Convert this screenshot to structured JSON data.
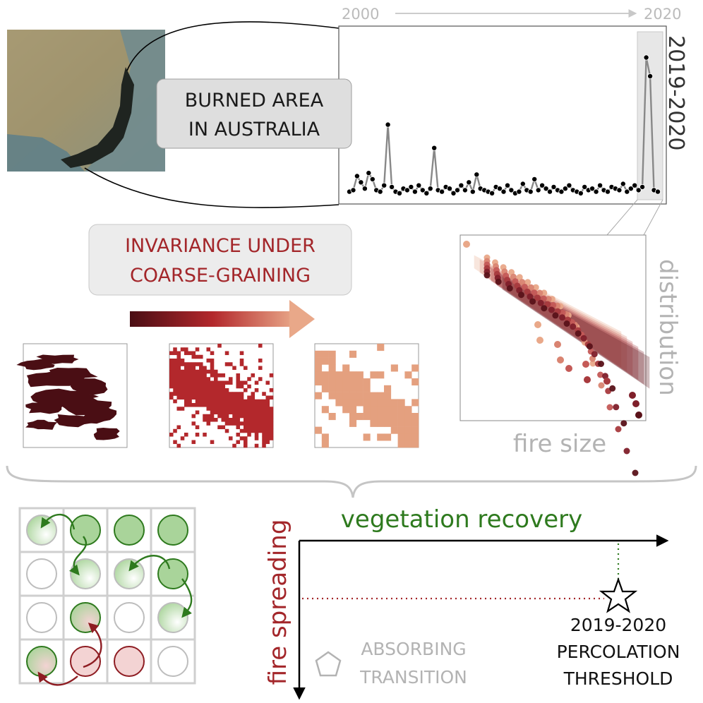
{
  "timeline": {
    "start": "2000",
    "end": "2020"
  },
  "burned_box": {
    "line1": "BURNED AREA",
    "line2": "IN AUSTRALIA"
  },
  "highlight_period": "2019-2020",
  "invariance_box": {
    "line1": "INVARIANCE UNDER",
    "line2": "COARSE-GRAINING"
  },
  "distribution_axis": {
    "xlabel": "fire size",
    "ylabel": "distribution"
  },
  "phase_diagram": {
    "xlabel": "vegetation recovery",
    "ylabel": "fire spreading",
    "absorbing": {
      "line1": "ABSORBING",
      "line2": "TRANSITION"
    },
    "percolation": {
      "line1": "2019-2020",
      "line2": "PERCOLATION",
      "line3": "THRESHOLD"
    }
  },
  "colors": {
    "dark_red": "#4a0e14",
    "mid_red": "#b3282c",
    "light_salmon": "#e4a07f",
    "green": "#2e7a1e",
    "text_red": "#a3262a",
    "gray": "#b3b3b3"
  },
  "grid_states": [
    [
      "green-fade",
      "green",
      "green",
      "green"
    ],
    [
      "empty",
      "green-fade",
      "green-fade",
      "green"
    ],
    [
      "empty",
      "green",
      "empty",
      "green-fade"
    ],
    [
      "green",
      "red",
      "red",
      "empty"
    ]
  ],
  "chart_data": {
    "type": "scatter",
    "x": [
      2000,
      2000.25,
      2000.5,
      2000.75,
      2001,
      2001.25,
      2001.5,
      2001.75,
      2002,
      2002.25,
      2002.5,
      2002.75,
      2003,
      2003.25,
      2003.5,
      2003.75,
      2004,
      2004.25,
      2004.5,
      2004.75,
      2005,
      2005.25,
      2005.5,
      2005.75,
      2006,
      2006.25,
      2006.5,
      2006.75,
      2007,
      2007.25,
      2007.5,
      2007.75,
      2008,
      2008.25,
      2008.5,
      2008.75,
      2009,
      2009.25,
      2009.5,
      2009.75,
      2010,
      2010.25,
      2010.5,
      2010.75,
      2011,
      2011.25,
      2011.5,
      2011.75,
      2012,
      2012.25,
      2012.5,
      2012.75,
      2013,
      2013.25,
      2013.5,
      2013.75,
      2014,
      2014.25,
      2014.5,
      2014.75,
      2015,
      2015.25,
      2015.5,
      2015.75,
      2016,
      2016.25,
      2016.5,
      2016.75,
      2017,
      2017.25,
      2017.5,
      2017.75,
      2018,
      2018.25,
      2018.5,
      2018.75,
      2019,
      2019.25,
      2019.5,
      2019.75,
      2020
    ],
    "values": [
      2,
      3,
      12,
      8,
      4,
      14,
      10,
      3,
      2,
      6,
      45,
      5,
      2,
      1,
      4,
      3,
      5,
      2,
      6,
      3,
      1,
      4,
      30,
      3,
      2,
      5,
      4,
      1,
      3,
      6,
      3,
      8,
      2,
      13,
      4,
      3,
      2,
      1,
      5,
      4,
      2,
      6,
      3,
      1,
      2,
      7,
      3,
      2,
      10,
      3,
      6,
      4,
      2,
      5,
      3,
      2,
      4,
      6,
      3,
      2,
      1,
      5,
      3,
      4,
      2,
      6,
      3,
      2,
      5,
      4,
      3,
      7,
      2,
      4,
      6,
      3,
      5,
      88,
      76,
      3,
      2
    ],
    "xlabel": "",
    "ylabel": "",
    "ylim": [
      0,
      100
    ]
  }
}
